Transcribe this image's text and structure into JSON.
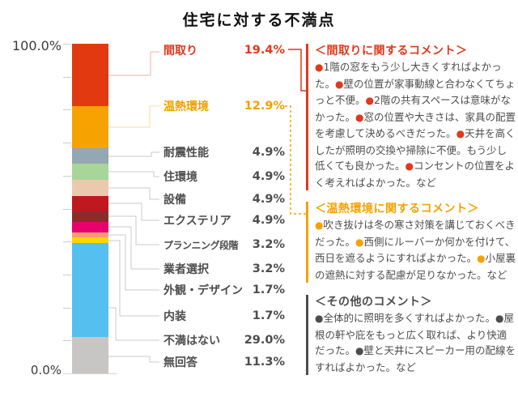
{
  "title": "住宅に対する不満点",
  "y_axis": {
    "top": "100.0%",
    "bottom": "0.0%"
  },
  "chart_data": {
    "type": "bar",
    "stacked": true,
    "orientation": "vertical",
    "title": "住宅に対する不満点",
    "xlabel": "",
    "ylabel": "",
    "unit": "%",
    "ylim": [
      0,
      100
    ],
    "grid": false,
    "legend": "none",
    "categories": [
      "間取り",
      "温熱環境",
      "耐震性能",
      "住環境",
      "設備",
      "エクステリア",
      "プランニング段階",
      "業者選択",
      "外観・デザイン",
      "内装",
      "不満はない",
      "無回答"
    ],
    "values": [
      19.4,
      12.9,
      4.9,
      4.9,
      4.9,
      4.9,
      3.2,
      3.2,
      1.7,
      1.7,
      29.0,
      11.3
    ],
    "segments": [
      {
        "label": "間取り",
        "pct": "19.4%",
        "value": 19.4,
        "color": "#e13a10",
        "label_color": "#e0391c"
      },
      {
        "label": "温熱環境",
        "pct": "12.9%",
        "value": 12.9,
        "color": "#f6a200",
        "label_color": "#f0a000"
      },
      {
        "label": "耐震性能",
        "pct": "4.9%",
        "value": 4.9,
        "color": "#94a7b3",
        "label_color": "#4d4d4d"
      },
      {
        "label": "住環境",
        "pct": "4.9%",
        "value": 4.9,
        "color": "#a8d598",
        "label_color": "#4d4d4d"
      },
      {
        "label": "設備",
        "pct": "4.9%",
        "value": 4.9,
        "color": "#ebc9ad",
        "label_color": "#4d4d4d"
      },
      {
        "label": "エクステリア",
        "pct": "4.9%",
        "value": 4.9,
        "color": "#c01820",
        "label_color": "#4d4d4d"
      },
      {
        "label": "プランニング段階",
        "pct": "3.2%",
        "value": 3.2,
        "color": "#8d2a2c",
        "label_color": "#4d4d4d"
      },
      {
        "label": "業者選択",
        "pct": "3.2%",
        "value": 3.2,
        "color": "#e7006e",
        "label_color": "#4d4d4d"
      },
      {
        "label": "外観・デザイン",
        "pct": "1.7%",
        "value": 1.7,
        "color": "#f89b73",
        "label_color": "#4d4d4d"
      },
      {
        "label": "内装",
        "pct": "1.7%",
        "value": 1.7,
        "color": "#ffd500",
        "label_color": "#4d4d4d"
      },
      {
        "label": "不満はない",
        "pct": "29.0%",
        "value": 29.0,
        "color": "#55c0f0",
        "label_color": "#4d4d4d"
      },
      {
        "label": "無回答",
        "pct": "11.3%",
        "value": 11.3,
        "color": "#c8c5c5",
        "label_color": "#4d4d4d"
      }
    ]
  },
  "comment_boxes": [
    {
      "title": "＜間取りに関するコメント＞",
      "accent": "#e0391c",
      "bullet": "●",
      "items": [
        "1階の窓をもう少し大きくすればよかった。",
        "壁の位置が家事動線と合わなくてちょっと不便。",
        "2階の共有スペースは意味がなかった。",
        "窓の位置や大きさは、家具の配置を考慮して決めるべきだった。",
        "天井を高くしたが照明の交換や掃除に不便。もう少し低くても良かった。",
        "コンセントの位置をよく考えればよかった。"
      ],
      "suffix": "など"
    },
    {
      "title": "＜温熱環境に関するコメント＞",
      "accent": "#f5a200",
      "bullet": "●",
      "items": [
        "吹き抜けは冬の寒さ対策を講じておくべきだった。",
        "西側にルーバーか何かを付けて、西日を遮るようにすればよかった。",
        "小屋裏の遮熱に対する配慮が足りなかった。"
      ],
      "suffix": "など"
    },
    {
      "title": "＜その他のコメント＞",
      "accent": "#4d4d4d",
      "bullet": "●",
      "items": [
        "全体的に照明を多くすればよかった。",
        "屋根の軒や庇をもっと広く取れば、より快適だった。",
        "壁と天井にスピーカー用の配線をすればよかった。"
      ],
      "suffix": "など"
    }
  ]
}
